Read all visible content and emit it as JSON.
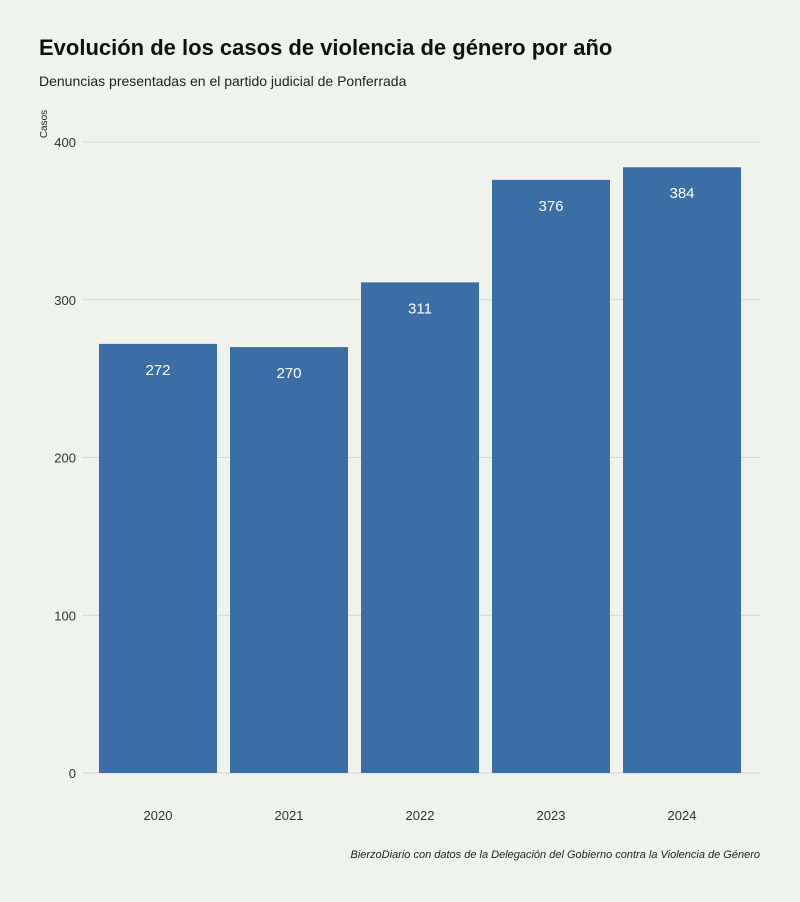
{
  "chart_data": {
    "type": "bar",
    "title": "Evolución de los casos de violencia de género por año",
    "subtitle": "Denuncias presentadas en el partido judicial de Ponferrada",
    "ylabel": "Casos",
    "xlabel": "",
    "categories": [
      "2020",
      "2021",
      "2022",
      "2023",
      "2024"
    ],
    "values": [
      272,
      270,
      311,
      376,
      384
    ],
    "ylim": [
      0,
      400
    ],
    "yticks": [
      0,
      100,
      200,
      300,
      400
    ],
    "grid": true,
    "bar_color": "#3a6ea5",
    "label_color": "#ffffff",
    "caption": "BierzoDiario con datos de la Delegación del Gobierno contra la Violencia de Género"
  }
}
